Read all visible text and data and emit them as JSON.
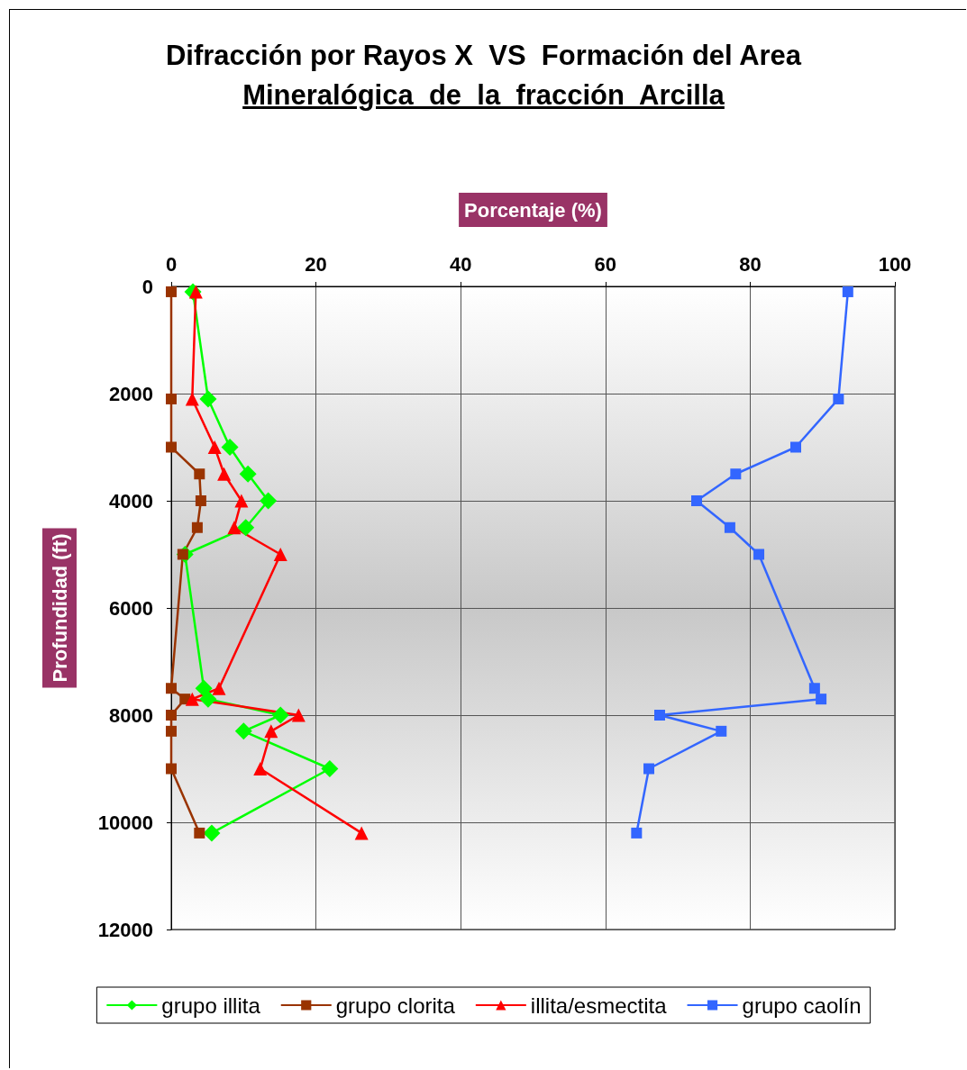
{
  "chart_data": {
    "type": "line",
    "title": "Difracción por Rayos X  VS  Formación del Area",
    "subtitle": "Mineralógica  de  la  fracción  Arcilla",
    "xlabel": "Porcentaje (%)",
    "ylabel": "Profundidad (ft)",
    "xlim": [
      0,
      100
    ],
    "xticks": [
      0,
      20,
      40,
      60,
      80,
      100
    ],
    "ylim": [
      12000,
      0
    ],
    "yticks": [
      0,
      2000,
      4000,
      6000,
      8000,
      10000,
      12000
    ],
    "grid": true,
    "legend": "bottom",
    "series": [
      {
        "name": "grupo illita",
        "color": "#00ff00",
        "marker": "diamond",
        "x": [
          3.0,
          5.1,
          8.1,
          10.6,
          13.4,
          10.3,
          1.9,
          4.5,
          5.1,
          15.1,
          10,
          21.9,
          5.6
        ],
        "values": [
          100,
          2100,
          3000,
          3500,
          4000,
          4500,
          5000,
          7500,
          7700,
          8000,
          8300,
          9000,
          10200
        ]
      },
      {
        "name": "grupo clorita",
        "color": "#993300",
        "marker": "square",
        "x": [
          0,
          0,
          0,
          3.9,
          4.1,
          3.6,
          1.6,
          0,
          1.9,
          0,
          0,
          0,
          3.9
        ],
        "values": [
          100,
          2100,
          3000,
          3500,
          4000,
          4500,
          5000,
          7500,
          7700,
          8000,
          8300,
          9000,
          10200
        ]
      },
      {
        "name": "illita/esmectita",
        "color": "#ff0000",
        "marker": "triangle",
        "x": [
          3.4,
          2.9,
          6,
          7.3,
          9.7,
          8.7,
          15.1,
          6.6,
          2.9,
          17.6,
          13.8,
          12.3,
          26.3
        ],
        "values": [
          100,
          2100,
          3000,
          3500,
          4000,
          4500,
          5000,
          7500,
          7700,
          8000,
          8300,
          9000,
          10200
        ]
      },
      {
        "name": "grupo caolín",
        "color": "#3366ff",
        "marker": "square",
        "x": [
          93.5,
          92.2,
          86.3,
          78,
          72.6,
          77.2,
          81.2,
          88.9,
          89.8,
          67.5,
          76,
          66,
          64.3
        ],
        "values": [
          100,
          2100,
          3000,
          3500,
          4000,
          4500,
          5000,
          7500,
          7700,
          8000,
          8300,
          9000,
          10200
        ]
      }
    ]
  }
}
